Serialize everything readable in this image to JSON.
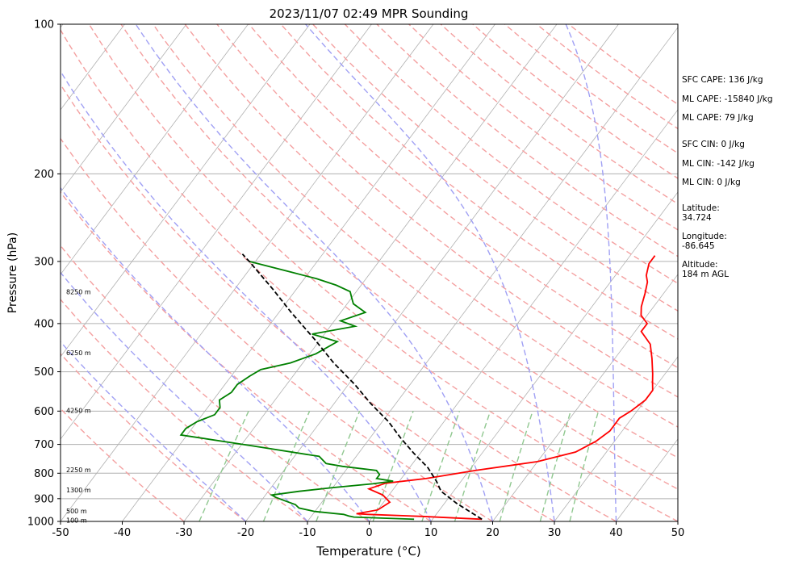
{
  "chart_data": {
    "type": "line",
    "title": "2023/11/07 02:49 MPR Sounding",
    "xlabel": "Temperature (°C)",
    "ylabel": "Pressure (hPa)",
    "xlim": [
      -50,
      50
    ],
    "ylim": [
      1000,
      100
    ],
    "y_scale": "log",
    "skew": "skew-T log-P",
    "grid": true,
    "x_ticks": [
      "-50",
      "-40",
      "-30",
      "-20",
      "-10",
      "0",
      "10",
      "20",
      "30",
      "40",
      "50"
    ],
    "y_ticks": [
      "100",
      "200",
      "300",
      "400",
      "500",
      "600",
      "700",
      "800",
      "900",
      "1000"
    ],
    "series": [
      {
        "color": "#ff0000",
        "points": [
          [
            18,
            990
          ],
          [
            8,
            977
          ],
          [
            -1,
            968
          ],
          [
            -3,
            965
          ],
          [
            0,
            948
          ],
          [
            1,
            915
          ],
          [
            -1,
            885
          ],
          [
            -4,
            860
          ],
          [
            -2,
            838
          ],
          [
            4,
            820
          ],
          [
            11,
            790
          ],
          [
            20,
            758
          ],
          [
            25,
            725
          ],
          [
            27,
            690
          ],
          [
            28,
            658
          ],
          [
            28,
            620
          ],
          [
            29,
            600
          ],
          [
            30,
            570
          ],
          [
            30,
            545
          ],
          [
            29,
            525
          ],
          [
            28,
            505
          ],
          [
            26,
            470
          ],
          [
            24,
            440
          ],
          [
            21,
            415
          ],
          [
            21,
            400
          ],
          [
            19,
            385
          ],
          [
            18,
            370
          ],
          [
            17,
            348
          ],
          [
            16,
            330
          ],
          [
            15,
            320
          ],
          [
            14,
            303
          ],
          [
            14,
            292
          ]
        ]
      },
      {
        "color": "#008000",
        "points": [
          [
            7,
            990
          ],
          [
            2,
            985
          ],
          [
            -3,
            980
          ],
          [
            -4,
            975
          ],
          [
            -5,
            968
          ],
          [
            -10,
            955
          ],
          [
            -13,
            940
          ],
          [
            -14,
            925
          ],
          [
            -16,
            910
          ],
          [
            -18,
            895
          ],
          [
            -19,
            885
          ],
          [
            -15,
            870
          ],
          [
            -10,
            855
          ],
          [
            -4,
            840
          ],
          [
            -1,
            830
          ],
          [
            -4,
            820
          ],
          [
            -4,
            805
          ],
          [
            -5,
            790
          ],
          [
            -11,
            775
          ],
          [
            -14,
            765
          ],
          [
            -16,
            740
          ],
          [
            -28,
            705
          ],
          [
            -41,
            670
          ],
          [
            -41,
            650
          ],
          [
            -40,
            630
          ],
          [
            -38,
            610
          ],
          [
            -38,
            590
          ],
          [
            -39,
            570
          ],
          [
            -38,
            550
          ],
          [
            -38,
            530
          ],
          [
            -37,
            510
          ],
          [
            -36,
            495
          ],
          [
            -32,
            480
          ],
          [
            -29,
            460
          ],
          [
            -27,
            435
          ],
          [
            -32,
            420
          ],
          [
            -26,
            405
          ],
          [
            -29,
            395
          ],
          [
            -26,
            380
          ],
          [
            -29,
            365
          ],
          [
            -30,
            355
          ],
          [
            -31,
            345
          ],
          [
            -34,
            335
          ],
          [
            -38,
            325
          ],
          [
            -43,
            315
          ],
          [
            -51,
            300
          ]
        ]
      },
      {
        "color": "#000000",
        "dashed": true,
        "points": [
          [
            18,
            990
          ],
          [
            12,
            920
          ],
          [
            8,
            870
          ],
          [
            6,
            830
          ],
          [
            3,
            780
          ],
          [
            -1,
            730
          ],
          [
            -5,
            680
          ],
          [
            -9,
            630
          ],
          [
            -14,
            580
          ],
          [
            -19,
            530
          ],
          [
            -25,
            480
          ],
          [
            -31,
            430
          ],
          [
            -38,
            380
          ],
          [
            -44,
            340
          ],
          [
            -51,
            300
          ],
          [
            -53,
            290
          ]
        ]
      }
    ],
    "height_labels": [
      {
        "text": "8250 m",
        "p": 345
      },
      {
        "text": "6250 m",
        "p": 458
      },
      {
        "text": "4250 m",
        "p": 598
      },
      {
        "text": "2250 m",
        "p": 787
      },
      {
        "text": "1300 m",
        "p": 865
      },
      {
        "text": "500 m",
        "p": 953
      },
      {
        "text": "100 m",
        "p": 995
      }
    ],
    "annotations": [
      "SFC CAPE: 136 J/kg",
      "ML CAPE: -15840 J/kg",
      "ML CAPE: 79 J/kg",
      "SFC CIN: 0 J/kg",
      "ML CIN: -142 J/kg",
      "ML CIN: 0 J/kg",
      [
        "Latitude:",
        "34.724"
      ],
      [
        "Longitude:",
        "-86.645"
      ],
      [
        "Altitude:",
        "184 m AGL"
      ]
    ],
    "line_colors": {
      "isotherms": "#b0b0b0",
      "isobars": "#b0b0b0",
      "dry_adiabats": "#f4a0a0",
      "moist_adiabats": "#a0a0f4",
      "mixing_ratio": "#90c890"
    }
  }
}
